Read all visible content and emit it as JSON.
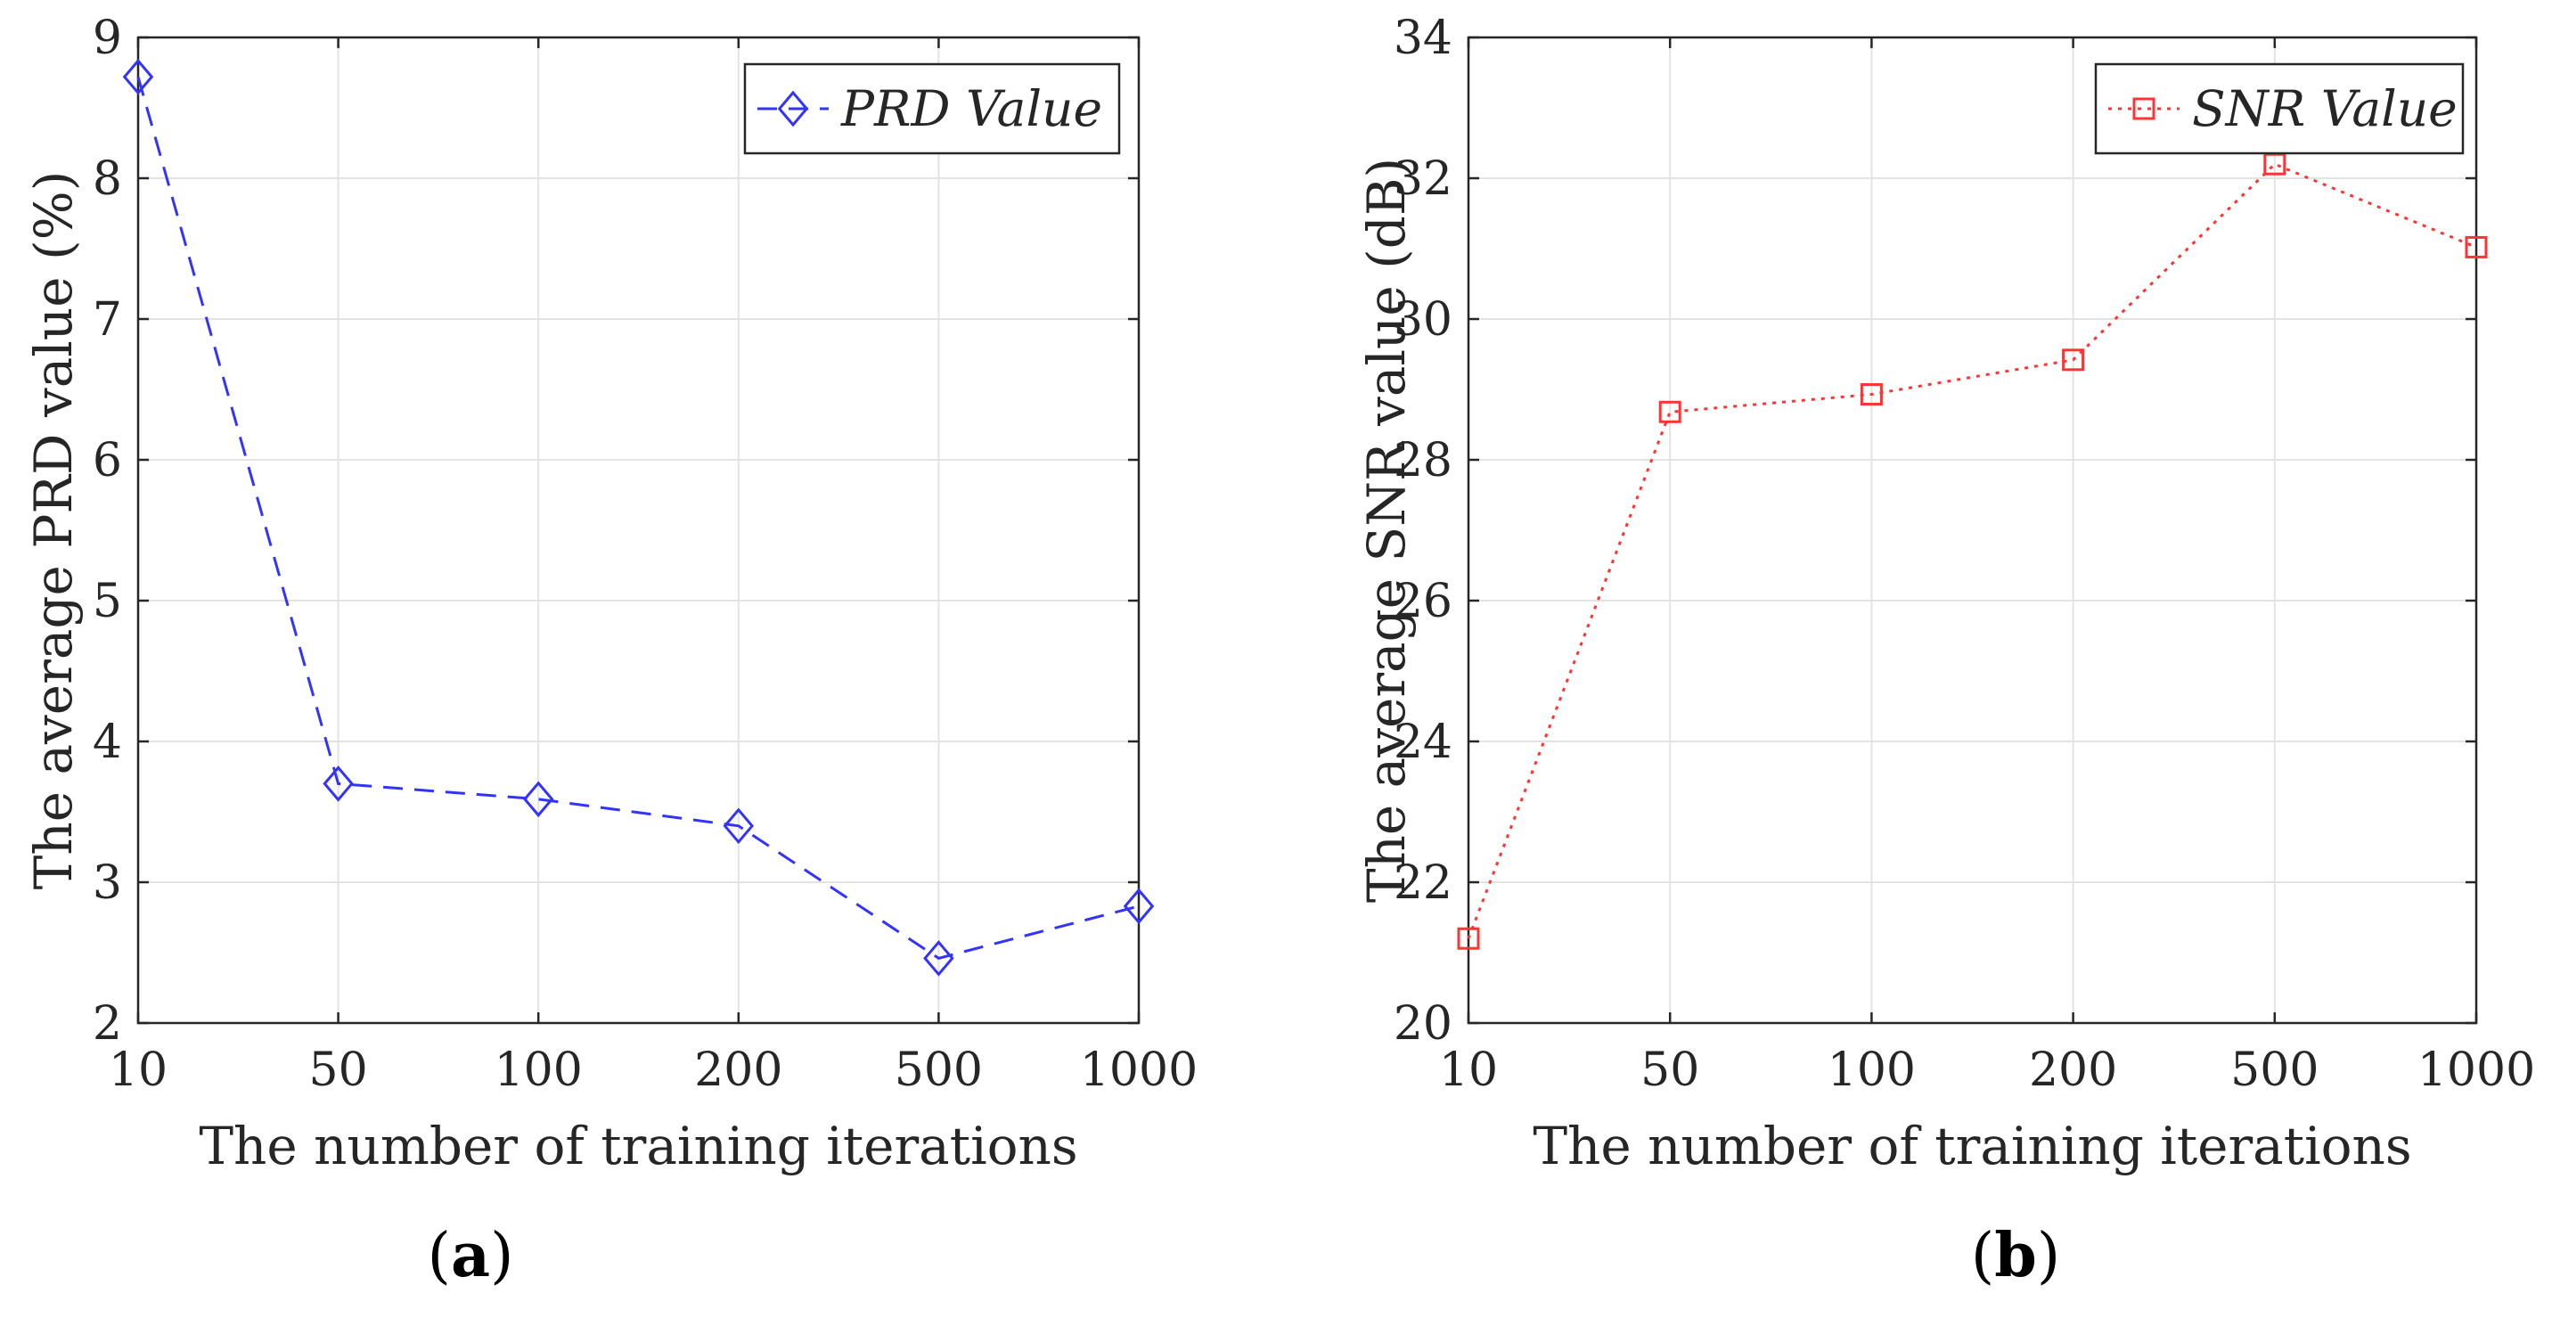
{
  "chart_data": [
    {
      "type": "line",
      "panel": "a",
      "x": [
        "10",
        "50",
        "100",
        "200",
        "500",
        "1000"
      ],
      "series": [
        {
          "name": "PRD Value",
          "values": [
            8.72,
            3.7,
            3.59,
            3.4,
            2.46,
            2.83
          ],
          "color": "#3333ff",
          "line_style": "dashed",
          "marker": "diamond"
        }
      ],
      "xlabel": "The number of training iterations",
      "ylabel": "The average PRD value (%)",
      "ylim": [
        2,
        9
      ],
      "yticks": [
        "2",
        "3",
        "4",
        "5",
        "6",
        "7",
        "8",
        "9"
      ],
      "grid": true,
      "legend": "top-right",
      "label_prefix": "(",
      "label_letter": "a",
      "label_suffix": ")"
    },
    {
      "type": "line",
      "panel": "b",
      "x": [
        "10",
        "50",
        "100",
        "200",
        "500",
        "1000"
      ],
      "series": [
        {
          "name": "SNR Value",
          "values": [
            21.2,
            28.68,
            28.93,
            29.42,
            32.2,
            31.02
          ],
          "color": "#ff3333",
          "line_style": "dotted",
          "marker": "square"
        }
      ],
      "xlabel": "The number of training iterations",
      "ylabel": "The average SNR value (dB)",
      "ylim": [
        20,
        34
      ],
      "yticks": [
        "20",
        "22",
        "24",
        "26",
        "28",
        "30",
        "32",
        "34"
      ],
      "grid": true,
      "legend": "top-right",
      "label_prefix": "(",
      "label_letter": "b",
      "label_suffix": ")"
    }
  ]
}
